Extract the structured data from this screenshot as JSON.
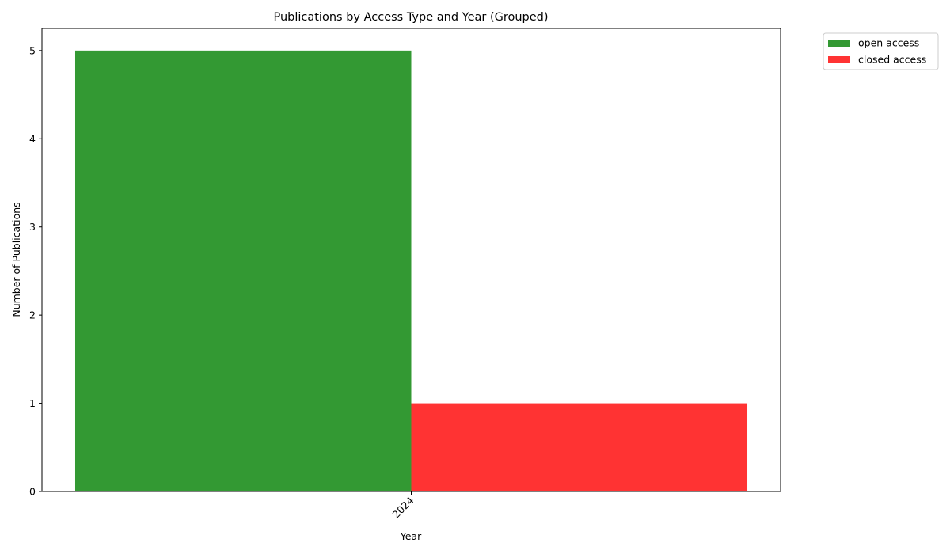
{
  "chart_data": {
    "type": "bar",
    "title": "Publications by Access Type and Year (Grouped)",
    "xlabel": "Year",
    "ylabel": "Number of Publications",
    "categories": [
      "2024"
    ],
    "series": [
      {
        "name": "open access",
        "values": [
          5
        ],
        "color": "#339933"
      },
      {
        "name": "closed access",
        "values": [
          1
        ],
        "color": "#ff3333"
      }
    ],
    "ylim": [
      0,
      5.25
    ],
    "yticks": [
      0,
      1,
      2,
      3,
      4,
      5
    ],
    "grid": false,
    "legend_position": "outside-top-right",
    "x_tick_rotation": "45deg"
  }
}
